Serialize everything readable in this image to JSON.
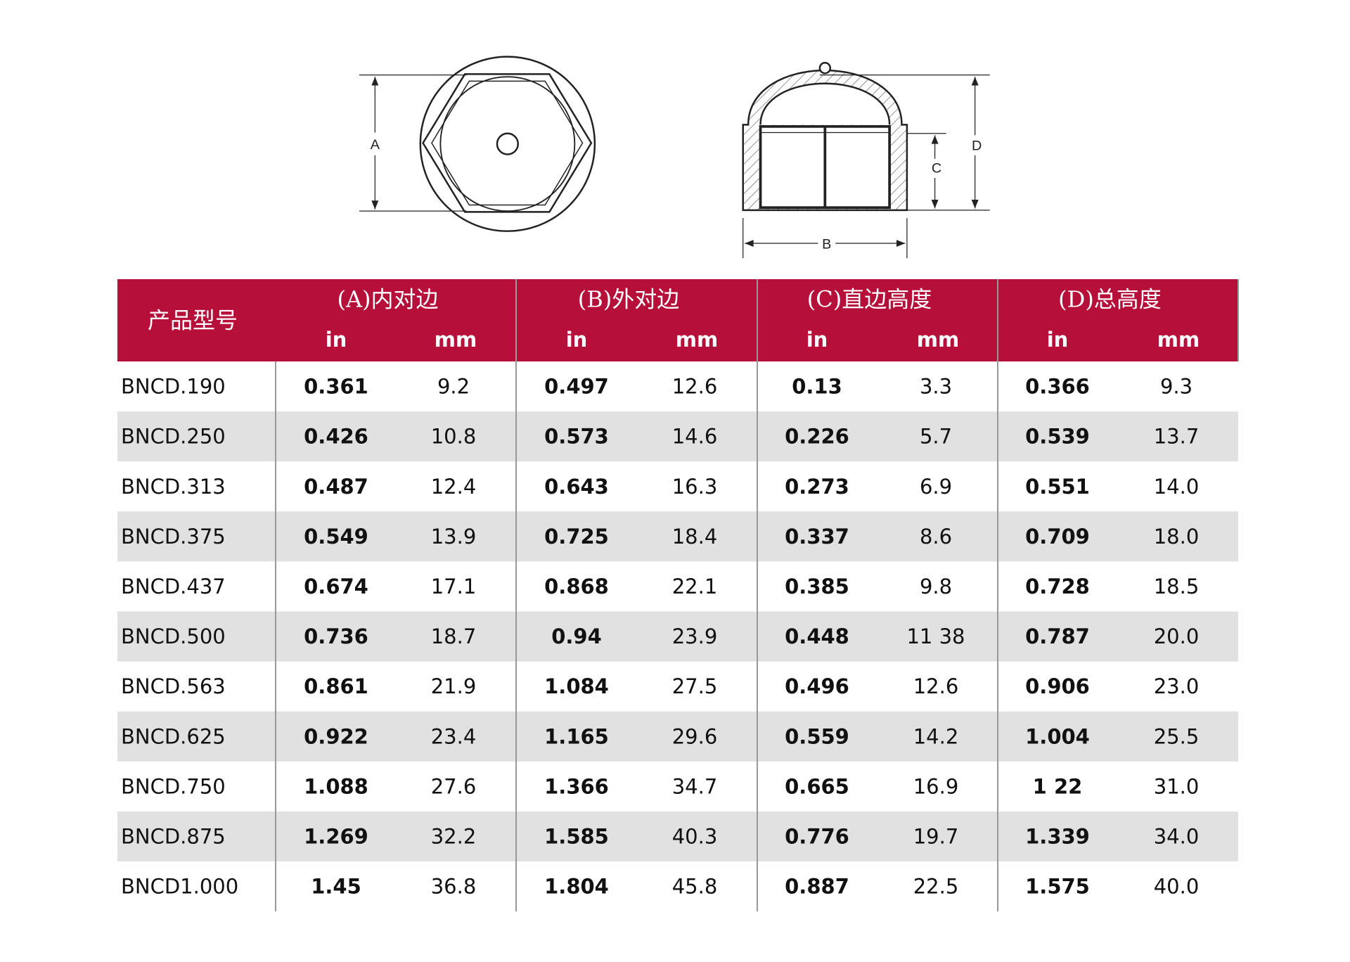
{
  "diagram": {
    "labels": {
      "a": "A",
      "b": "B",
      "c": "C",
      "d": "D"
    }
  },
  "table": {
    "header": {
      "model": "产品型号",
      "groups": [
        {
          "title": "(A)内对边",
          "units": [
            "in",
            "mm"
          ]
        },
        {
          "title": "(B)外对边",
          "units": [
            "in",
            "mm"
          ]
        },
        {
          "title": "(C)直边高度",
          "units": [
            "in",
            "mm"
          ]
        },
        {
          "title": "(D)总高度",
          "units": [
            "in",
            "mm"
          ]
        }
      ]
    },
    "rows": [
      [
        "BNCD.190",
        "0.361",
        "9.2",
        "0.497",
        "12.6",
        "0.13",
        "3.3",
        "0.366",
        "9.3"
      ],
      [
        "BNCD.250",
        "0.426",
        "10.8",
        "0.573",
        "14.6",
        "0.226",
        "5.7",
        "0.539",
        "13.7"
      ],
      [
        "BNCD.313",
        "0.487",
        "12.4",
        "0.643",
        "16.3",
        "0.273",
        "6.9",
        "0.551",
        "14.0"
      ],
      [
        "BNCD.375",
        "0.549",
        "13.9",
        "0.725",
        "18.4",
        "0.337",
        "8.6",
        "0.709",
        "18.0"
      ],
      [
        "BNCD.437",
        "0.674",
        "17.1",
        "0.868",
        "22.1",
        "0.385",
        "9.8",
        "0.728",
        "18.5"
      ],
      [
        "BNCD.500",
        "0.736",
        "18.7",
        "0.94",
        "23.9",
        "0.448",
        "11 38",
        "0.787",
        "20.0"
      ],
      [
        "BNCD.563",
        "0.861",
        "21.9",
        "1.084",
        "27.5",
        "0.496",
        "12.6",
        "0.906",
        "23.0"
      ],
      [
        "BNCD.625",
        "0.922",
        "23.4",
        "1.165",
        "29.6",
        "0.559",
        "14.2",
        "1.004",
        "25.5"
      ],
      [
        "BNCD.750",
        "1.088",
        "27.6",
        "1.366",
        "34.7",
        "0.665",
        "16.9",
        "1 22",
        "31.0"
      ],
      [
        "BNCD.875",
        "1.269",
        "32.2",
        "1.585",
        "40.3",
        "0.776",
        "19.7",
        "1.339",
        "34.0"
      ],
      [
        "BNCD1.000",
        "1.45",
        "36.8",
        "1.804",
        "45.8",
        "0.887",
        "22.5",
        "1.575",
        "40.0"
      ]
    ]
  }
}
